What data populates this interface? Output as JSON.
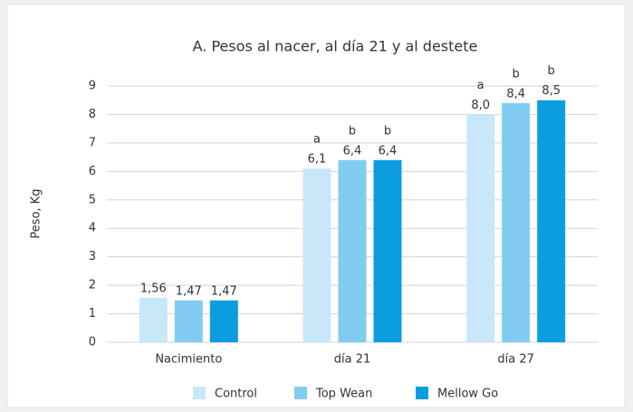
{
  "chart_data": {
    "type": "bar",
    "title": "A. Pesos al nacer, al día 21 y al destete",
    "y_label": "Peso, Kg",
    "categories": [
      "Nacimiento",
      "día 21",
      "día 27"
    ],
    "series": [
      {
        "name": "Control",
        "color": "#c8e7f8",
        "values": [
          1.56,
          6.1,
          8.0
        ],
        "value_labels": [
          "1,56",
          "6,1",
          "8,0"
        ],
        "letters": [
          null,
          "a",
          "a"
        ]
      },
      {
        "name": "Top Wean",
        "color": "#80cdf1",
        "values": [
          1.47,
          6.4,
          8.4
        ],
        "value_labels": [
          "1,47",
          "6,4",
          "8,4"
        ],
        "letters": [
          null,
          "b",
          "b"
        ]
      },
      {
        "name": "Mellow Go",
        "color": "#0b9de0",
        "values": [
          1.47,
          6.4,
          8.5
        ],
        "value_labels": [
          "1,47",
          "6,4",
          "8,5"
        ],
        "letters": [
          null,
          "b",
          "b"
        ]
      }
    ],
    "ylim": [
      0,
      9
    ],
    "yticks": [
      0,
      1,
      2,
      3,
      4,
      5,
      6,
      7,
      8,
      9
    ],
    "grid": true,
    "legend": "bottom"
  }
}
